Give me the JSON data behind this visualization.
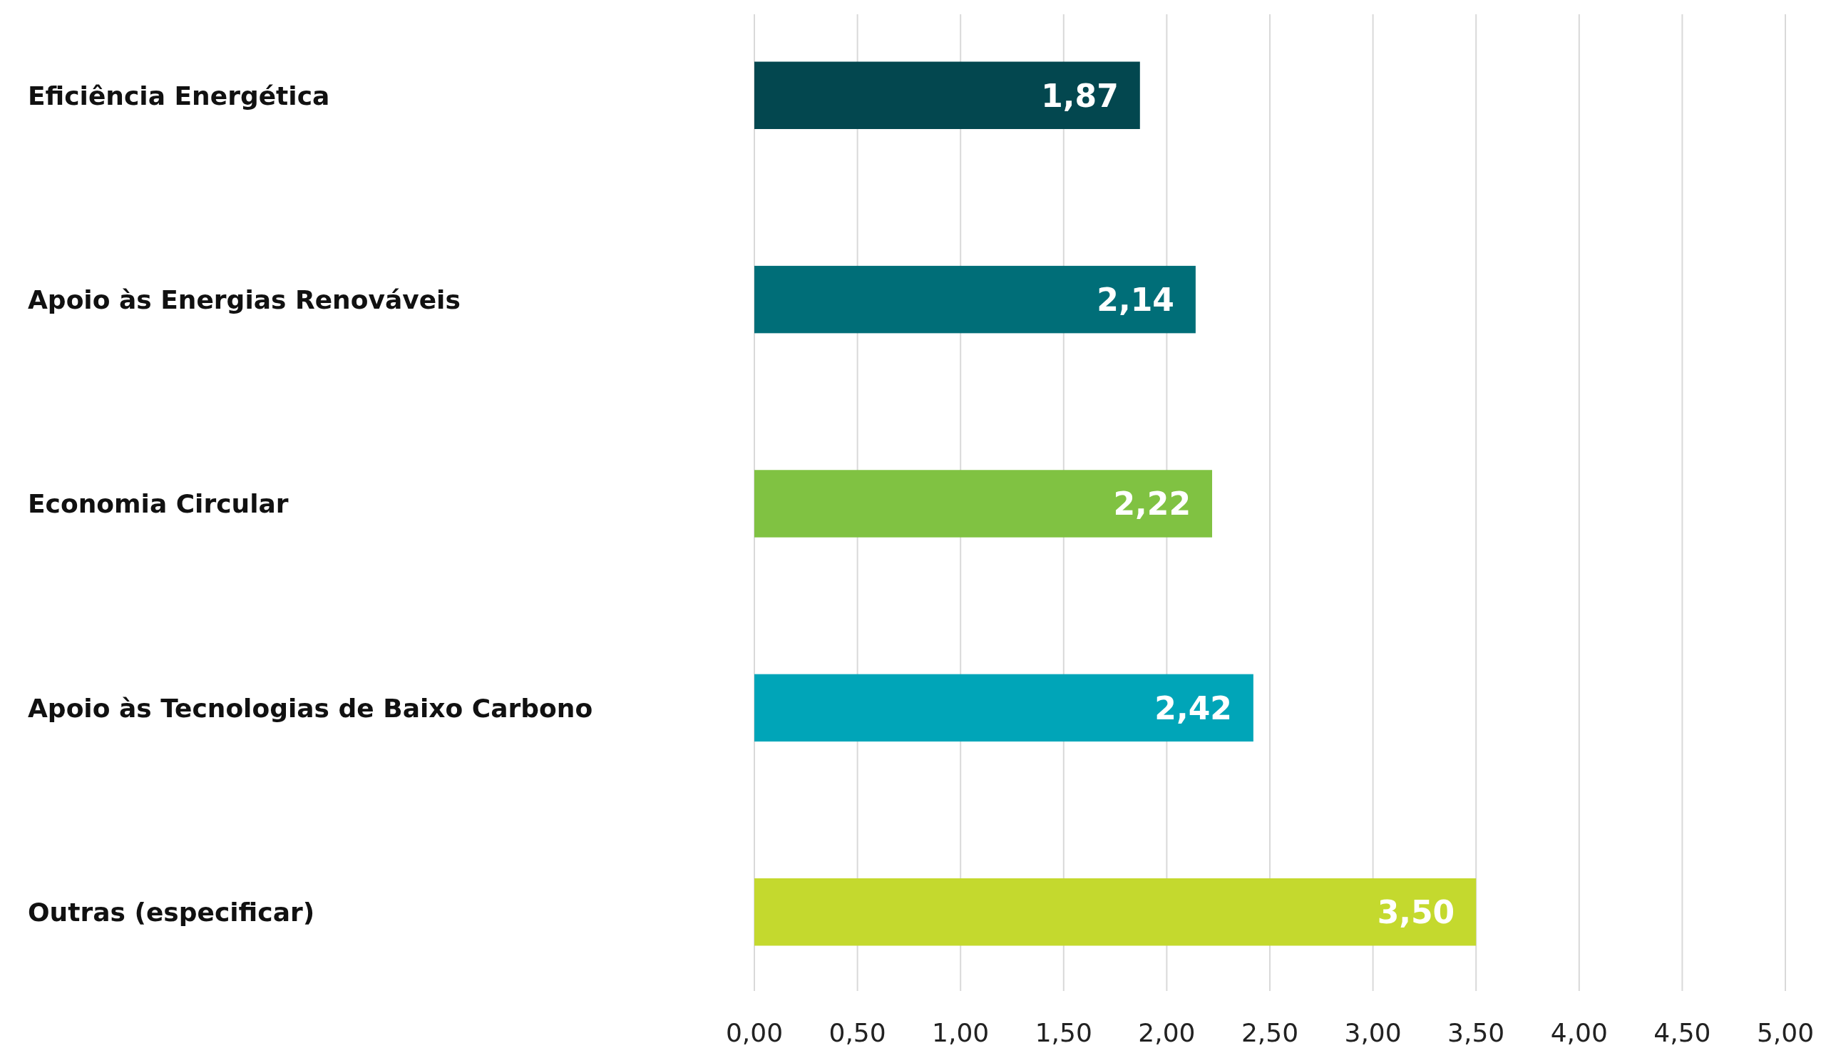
{
  "chart_data": {
    "type": "bar",
    "orientation": "horizontal",
    "categories": [
      "Eficiência Energética",
      "Apoio às Energias Renováveis",
      "Economia Circular",
      "Apoio às Tecnologias de Baixo Carbono",
      "Outras (especificar)"
    ],
    "values": [
      1.87,
      2.14,
      2.22,
      2.42,
      3.5
    ],
    "colors": [
      "#03474f",
      "#006e78",
      "#80c242",
      "#00a5b8",
      "#c4d92e"
    ],
    "value_labels": [
      "1,87",
      "2,14",
      "2,22",
      "2,42",
      "3,50"
    ],
    "xlim": [
      0,
      5
    ],
    "xticks": [
      {
        "value": 0,
        "label": "0,00"
      },
      {
        "value": 0.5,
        "label": "0,50"
      },
      {
        "value": 1,
        "label": "1,00"
      },
      {
        "value": 1.5,
        "label": "1,50"
      },
      {
        "value": 2,
        "label": "2,00"
      },
      {
        "value": 2.5,
        "label": "2,50"
      },
      {
        "value": 3,
        "label": "3,00"
      },
      {
        "value": 3.5,
        "label": "3,50"
      },
      {
        "value": 4,
        "label": "4,00"
      },
      {
        "value": 4.5,
        "label": "4,50"
      },
      {
        "value": 5,
        "label": "5,00"
      }
    ],
    "grid": "x"
  }
}
